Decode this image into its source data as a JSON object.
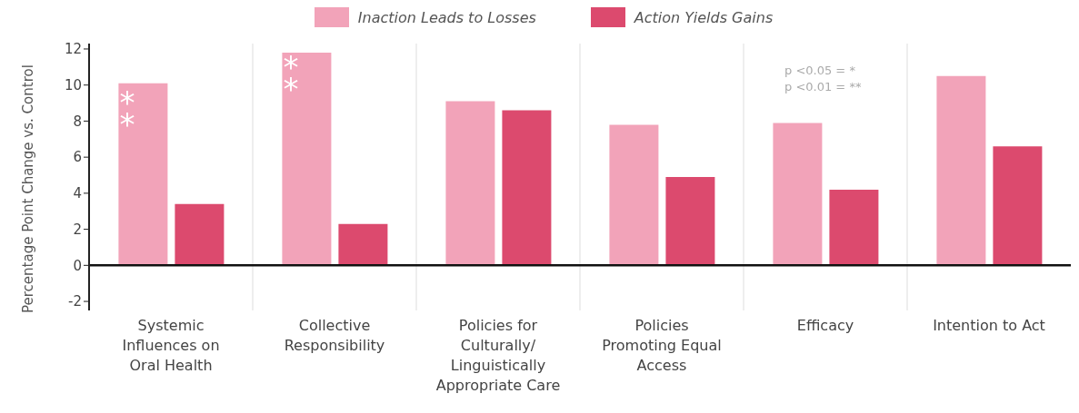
{
  "chart_data": {
    "type": "bar",
    "ylabel": "Percentage Point Change vs. Control",
    "categories": [
      "Systemic Influences on Oral Health",
      "Collective Responsibility",
      "Policies for Culturally/Linguistically Appropriate Care",
      "Policies Promoting Equal Access",
      "Efficacy",
      "Intention to Act"
    ],
    "series": [
      {
        "name": "Inaction Leads to Losses",
        "color": "#f2a3b9",
        "values": [
          10.1,
          11.8,
          9.1,
          7.8,
          7.9,
          10.5
        ]
      },
      {
        "name": "Action Yields Gains",
        "color": "#dc4a6e",
        "values": [
          3.4,
          2.3,
          8.6,
          4.9,
          4.2,
          6.6
        ]
      }
    ],
    "ylim": [
      -2.5,
      12.3
    ],
    "yticks": [
      -2,
      0,
      2,
      4,
      6,
      8,
      10,
      12
    ],
    "grid": "x",
    "legend": "top",
    "annotations": [
      {
        "text": "**",
        "x": "Systemic Influences on Oral Health",
        "y": 8.4
      },
      {
        "text": "**",
        "x": "Collective Responsibility",
        "y": 10.4
      },
      "p <0.05 = *",
      "p <0.01 = **"
    ]
  }
}
